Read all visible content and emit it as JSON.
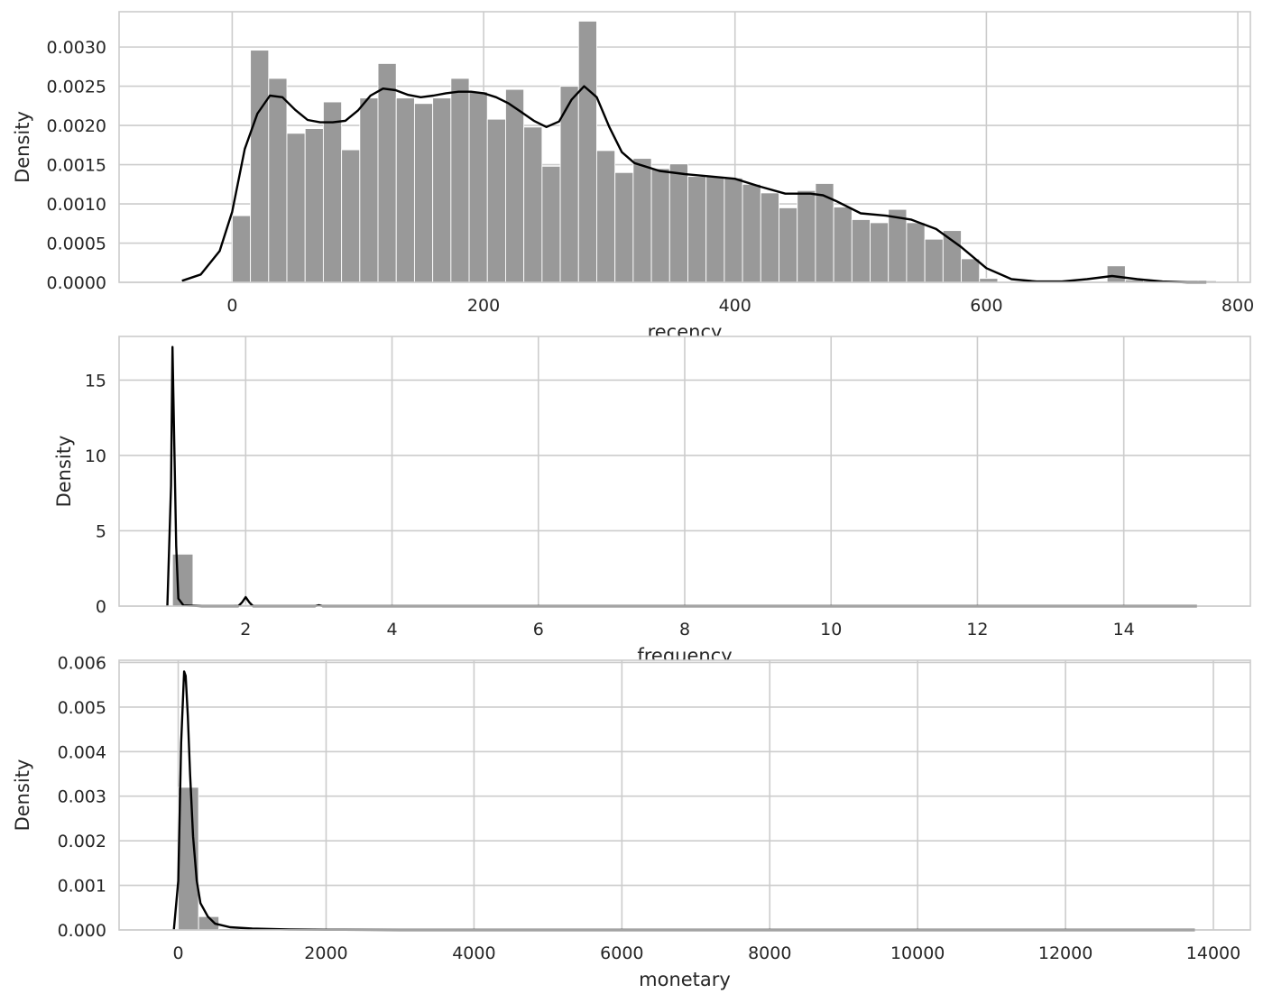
{
  "figure": {
    "background": "#ffffff",
    "grid_color": "#cccccc",
    "bar_color": "#999999",
    "kde_color": "#000000"
  },
  "chart_data": [
    {
      "type": "bar",
      "subtype": "histogram-with-kde",
      "xlabel": "recency",
      "ylabel": "Density",
      "xlim": [
        -90,
        810
      ],
      "ylim": [
        0,
        0.00345
      ],
      "grid": true,
      "xticks": [
        0,
        200,
        400,
        600,
        800
      ],
      "xtick_labels": [
        "0",
        "200",
        "400",
        "600",
        "800"
      ],
      "yticks": [
        0.0,
        0.0005,
        0.001,
        0.0015,
        0.002,
        0.0025,
        0.003
      ],
      "ytick_labels": [
        "0.0000",
        "0.0005",
        "0.0010",
        "0.0015",
        "0.0020",
        "0.0025",
        "0.0030"
      ],
      "bin_edges": [
        0,
        14.5,
        29,
        43.5,
        58,
        72.5,
        87,
        101.5,
        116,
        130.5,
        145,
        159.5,
        174,
        188.5,
        203,
        217.5,
        232,
        246.5,
        261,
        275.5,
        290,
        304.5,
        319,
        333.5,
        348,
        362.5,
        377,
        391.5,
        406,
        420.5,
        435,
        449.5,
        464,
        478.5,
        493,
        507.5,
        522,
        536.5,
        551,
        565.5,
        580,
        594.5,
        609,
        623.5,
        638,
        652.5,
        667,
        681.5,
        696,
        710.5,
        725,
        739.5,
        754,
        768.5,
        783
      ],
      "bin_values": [
        0.00085,
        0.00296,
        0.0026,
        0.0019,
        0.00196,
        0.0023,
        0.00169,
        0.00235,
        0.00279,
        0.00235,
        0.00228,
        0.00235,
        0.0026,
        0.00243,
        0.00208,
        0.00246,
        0.00198,
        0.00148,
        0.0025,
        0.00333,
        0.00168,
        0.0014,
        0.00158,
        0.00145,
        0.00151,
        0.00135,
        0.00135,
        0.00133,
        0.00125,
        0.00114,
        0.00095,
        0.00117,
        0.00126,
        0.00096,
        0.0008,
        0.00076,
        0.00093,
        0.00076,
        0.00055,
        0.00066,
        0.0003,
        5e-05,
        0,
        0,
        0,
        0,
        0,
        0,
        0.00021,
        3e-05,
        2e-05,
        2e-05,
        2e-05,
        2e-05
      ],
      "kde": {
        "x": [
          -40,
          -25,
          -10,
          0,
          10,
          20,
          30,
          40,
          50,
          60,
          70,
          80,
          90,
          100,
          110,
          120,
          130,
          140,
          150,
          160,
          170,
          180,
          190,
          200,
          210,
          220,
          230,
          240,
          250,
          260,
          270,
          280,
          290,
          300,
          310,
          320,
          340,
          360,
          380,
          400,
          420,
          440,
          460,
          470,
          480,
          500,
          520,
          540,
          560,
          580,
          600,
          620,
          640,
          660,
          680,
          700,
          720,
          740,
          760,
          775
        ],
        "y": [
          2e-05,
          0.0001,
          0.0004,
          0.0009,
          0.0017,
          0.00215,
          0.00238,
          0.00236,
          0.0022,
          0.00207,
          0.00204,
          0.00204,
          0.00206,
          0.00219,
          0.00238,
          0.00247,
          0.00245,
          0.00239,
          0.00236,
          0.00238,
          0.00241,
          0.00243,
          0.00243,
          0.00241,
          0.00236,
          0.00228,
          0.00217,
          0.00206,
          0.00198,
          0.00205,
          0.00233,
          0.0025,
          0.00236,
          0.00198,
          0.00166,
          0.00152,
          0.00142,
          0.00138,
          0.00135,
          0.00132,
          0.00122,
          0.00113,
          0.00113,
          0.00111,
          0.00104,
          0.00088,
          0.00085,
          0.0008,
          0.00068,
          0.00045,
          0.00018,
          4e-05,
          1e-05,
          1e-05,
          4e-05,
          8e-05,
          4e-05,
          1e-05,
          0.0,
          0.0
        ]
      }
    },
    {
      "type": "bar",
      "subtype": "histogram-with-kde",
      "xlabel": "frequency",
      "ylabel": "Density",
      "xlim": [
        0.27,
        15.73
      ],
      "ylim": [
        0,
        17.9
      ],
      "grid": true,
      "xticks": [
        2,
        4,
        6,
        8,
        10,
        12,
        14
      ],
      "xtick_labels": [
        "2",
        "4",
        "6",
        "8",
        "10",
        "12",
        "14"
      ],
      "yticks": [
        0,
        5,
        10,
        15
      ],
      "ytick_labels": [
        "0",
        "5",
        "10",
        "15"
      ],
      "bin_edges": [
        1.0,
        1.28,
        1.56,
        1.84,
        2.12,
        2.4,
        2.68,
        2.96,
        3.24,
        3.52,
        3.8,
        4.08,
        4.36,
        4.64,
        4.92,
        5.2,
        5.48,
        5.76,
        6.04,
        6.32,
        6.6,
        6.88,
        7.16,
        7.44,
        7.72,
        8.0,
        8.28,
        8.56,
        8.84,
        9.12,
        9.4,
        9.68,
        9.96,
        10.24,
        10.52,
        10.8,
        11.08,
        11.36,
        11.64,
        11.92,
        12.2,
        12.48,
        12.76,
        13.04,
        13.32,
        13.6,
        13.88,
        14.16,
        14.44,
        14.72,
        15.0
      ],
      "bin_values": [
        3.45,
        0.0,
        0.0,
        0.1,
        0.0,
        0.0,
        0.02,
        0.0,
        0.0,
        0.0,
        0.01,
        0,
        0,
        0,
        0,
        0,
        0,
        0,
        0,
        0,
        0,
        0,
        0,
        0,
        0,
        0,
        0,
        0,
        0,
        0,
        0,
        0,
        0,
        0,
        0,
        0,
        0,
        0,
        0,
        0,
        0,
        0,
        0,
        0,
        0,
        0,
        0,
        0,
        0,
        0
      ],
      "kde": {
        "x": [
          0.93,
          0.98,
          1.0,
          1.02,
          1.05,
          1.08,
          1.15,
          1.4,
          1.9,
          1.95,
          2.0,
          2.05,
          2.1,
          2.5,
          2.95,
          3.0,
          3.05,
          3.5,
          5,
          8,
          11,
          14,
          15.0
        ],
        "y": [
          0.0,
          8.0,
          17.2,
          12.0,
          4.0,
          0.5,
          0.05,
          0.0,
          0.0,
          0.25,
          0.6,
          0.25,
          0.0,
          0.0,
          0.0,
          0.06,
          0.0,
          0.0,
          0.0,
          0.0,
          0.0,
          0.0,
          0.0
        ]
      }
    },
    {
      "type": "bar",
      "subtype": "histogram-with-kde",
      "xlabel": "monetary",
      "ylabel": "Density",
      "xlim": [
        -800,
        14500
      ],
      "ylim": [
        0,
        0.00605
      ],
      "grid": true,
      "xticks": [
        0,
        2000,
        4000,
        6000,
        8000,
        10000,
        12000,
        14000
      ],
      "xtick_labels": [
        "0",
        "2000",
        "4000",
        "6000",
        "8000",
        "10000",
        "12000",
        "14000"
      ],
      "yticks": [
        0.0,
        0.001,
        0.002,
        0.003,
        0.004,
        0.005,
        0.006
      ],
      "ytick_labels": [
        "0.000",
        "0.001",
        "0.002",
        "0.003",
        "0.004",
        "0.005",
        "0.006"
      ],
      "bin_edges": [
        0,
        275,
        550,
        825,
        1100,
        1375,
        1650,
        1925,
        2200,
        2475,
        2750,
        3025,
        3300,
        3575,
        3850,
        4125,
        4400,
        4675,
        4950,
        5225,
        5500,
        5775,
        6050,
        6325,
        6600,
        6875,
        7150,
        7425,
        7700,
        7975,
        8250,
        8525,
        8800,
        9075,
        9350,
        9625,
        9900,
        10175,
        10450,
        10725,
        11000,
        11275,
        11550,
        11825,
        12100,
        12375,
        12650,
        12925,
        13200,
        13475,
        13750
      ],
      "bin_values": [
        0.0032,
        0.0003,
        3e-05,
        1e-05,
        1e-05,
        0,
        0,
        0,
        0,
        0,
        0,
        0,
        0,
        0,
        0,
        0,
        0,
        0,
        0,
        0,
        0,
        0,
        0,
        0,
        0,
        0,
        0,
        0,
        0,
        0,
        0,
        0,
        0,
        0,
        0,
        0,
        0,
        0,
        0,
        0,
        0,
        0,
        0,
        0,
        0,
        0,
        0,
        0,
        0,
        0
      ],
      "kde": {
        "x": [
          -60,
          0,
          40,
          80,
          100,
          130,
          160,
          200,
          250,
          300,
          400,
          500,
          700,
          1000,
          1500,
          2000,
          3000,
          5000,
          8000,
          11000,
          13750
        ],
        "y": [
          0.0,
          0.0011,
          0.0042,
          0.0058,
          0.0057,
          0.0048,
          0.0035,
          0.0021,
          0.0011,
          0.0006,
          0.0003,
          0.00014,
          6e-05,
          3e-05,
          1e-05,
          5e-06,
          0.0,
          0.0,
          0.0,
          0.0,
          0.0
        ]
      }
    }
  ]
}
